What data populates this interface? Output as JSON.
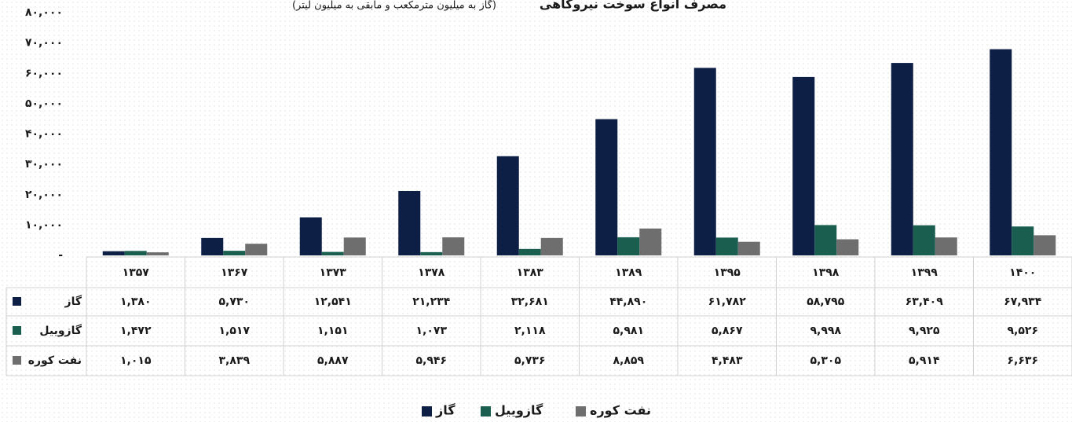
{
  "chart_data": {
    "type": "bar",
    "title": "مصرف انواع سوخت نیروگاهی",
    "subtitle": "(گاز به میلیون مترمکعب و مابقی به میلیون لیتر)",
    "categories": [
      "۱۳۵۷",
      "۱۳۶۷",
      "۱۳۷۳",
      "۱۳۷۸",
      "۱۳۸۳",
      "۱۳۸۹",
      "۱۳۹۵",
      "۱۳۹۸",
      "۱۳۹۹",
      "۱۴۰۰"
    ],
    "series": [
      {
        "name": "گاز",
        "color": "#0e1f45",
        "values": [
          1380,
          5730,
          12541,
          21234,
          32681,
          44890,
          61782,
          58795,
          63409,
          67934
        ],
        "value_labels": [
          "۱,۳۸۰",
          "۵,۷۳۰",
          "۱۲,۵۴۱",
          "۲۱,۲۳۴",
          "۳۲,۶۸۱",
          "۴۴,۸۹۰",
          "۶۱,۷۸۲",
          "۵۸,۷۹۵",
          "۶۳,۴۰۹",
          "۶۷,۹۳۴"
        ]
      },
      {
        "name": "گازوییل",
        "color": "#1a5e50",
        "values": [
          1472,
          1517,
          1151,
          1073,
          2118,
          5981,
          5867,
          9998,
          9925,
          9526
        ],
        "value_labels": [
          "۱,۴۷۲",
          "۱,۵۱۷",
          "۱,۱۵۱",
          "۱,۰۷۳",
          "۲,۱۱۸",
          "۵,۹۸۱",
          "۵,۸۶۷",
          "۹,۹۹۸",
          "۹,۹۲۵",
          "۹,۵۲۶"
        ]
      },
      {
        "name": "نفت کوره",
        "color": "#6e6e6e",
        "values": [
          1015,
          3839,
          5887,
          5946,
          5736,
          8859,
          4483,
          5305,
          5914,
          6636
        ],
        "value_labels": [
          "۱,۰۱۵",
          "۳,۸۳۹",
          "۵,۸۸۷",
          "۵,۹۴۶",
          "۵,۷۳۶",
          "۸,۸۵۹",
          "۴,۴۸۳",
          "۵,۳۰۵",
          "۵,۹۱۴",
          "۶,۶۳۶"
        ]
      }
    ],
    "ylim": [
      0,
      80000
    ],
    "yticks": [
      {
        "value": 0,
        "label": "-"
      },
      {
        "value": 10000,
        "label": "۱۰,۰۰۰"
      },
      {
        "value": 20000,
        "label": "۲۰,۰۰۰"
      },
      {
        "value": 30000,
        "label": "۳۰,۰۰۰"
      },
      {
        "value": 40000,
        "label": "۴۰,۰۰۰"
      },
      {
        "value": 50000,
        "label": "۵۰,۰۰۰"
      },
      {
        "value": 60000,
        "label": "۶۰,۰۰۰"
      },
      {
        "value": 70000,
        "label": "۷۰,۰۰۰"
      },
      {
        "value": 80000,
        "label": "۸۰,۰۰۰"
      }
    ],
    "grid": false
  }
}
